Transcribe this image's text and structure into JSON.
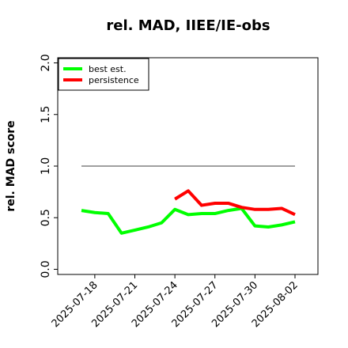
{
  "chart_data": {
    "type": "line",
    "title": "rel. MAD, IIEE/IE-obs",
    "y_label": "rel. MAD score",
    "x": [
      "2025-07-17",
      "2025-07-18",
      "2025-07-19",
      "2025-07-20",
      "2025-07-21",
      "2025-07-22",
      "2025-07-23",
      "2025-07-24",
      "2025-07-25",
      "2025-07-26",
      "2025-07-27",
      "2025-07-28",
      "2025-07-29",
      "2025-07-30",
      "2025-07-31",
      "2025-08-01",
      "2025-08-02"
    ],
    "series": [
      {
        "name": "best est.",
        "color": "#00ff00",
        "values": [
          0.57,
          0.55,
          0.54,
          0.35,
          0.38,
          0.41,
          0.45,
          0.58,
          0.53,
          0.54,
          0.54,
          0.57,
          0.59,
          0.42,
          0.41,
          0.43,
          0.46
        ]
      },
      {
        "name": "persistence",
        "color": "#ff0000",
        "values": [
          null,
          null,
          null,
          null,
          null,
          null,
          null,
          0.68,
          0.76,
          0.62,
          0.64,
          0.64,
          0.6,
          0.58,
          0.58,
          0.59,
          0.53
        ]
      }
    ],
    "reference_line": {
      "value": 1.0,
      "color": "#808080"
    },
    "ylim": [
      -0.05,
      2.05
    ],
    "yticks": [
      0.0,
      0.5,
      1.0,
      1.5,
      2.0
    ],
    "xticks": [
      "2025-07-18",
      "2025-07-21",
      "2025-07-24",
      "2025-07-27",
      "2025-07-30",
      "2025-08-02"
    ],
    "legend": "upper left"
  }
}
